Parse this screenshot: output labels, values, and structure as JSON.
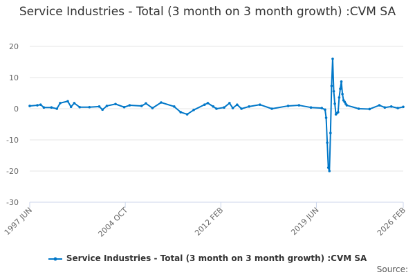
{
  "chart_data": {
    "type": "line",
    "title": "Service Industries - Total (3 month on 3 month growth) :CVM SA",
    "xlabel": "",
    "ylabel": "",
    "ylim": [
      -30,
      20
    ],
    "yticks": [
      20,
      10,
      0,
      -10,
      -20,
      -30
    ],
    "xticks": [
      "1997 JUN",
      "2004 OCT",
      "2012 FEB",
      "2019 JUN",
      "2026 FEB"
    ],
    "xrange": [
      "1997-06",
      "2026-02"
    ],
    "grid": true,
    "legend": "bottom",
    "color": "#0077c8",
    "series": [
      {
        "name": "Service Industries - Total (3 month on 3 month growth) :CVM SA",
        "points": [
          [
            "1997-06",
            0.9
          ],
          [
            "1998-01",
            1.1
          ],
          [
            "1998-04",
            1.3
          ],
          [
            "1998-07",
            0.4
          ],
          [
            "1999-02",
            0.4
          ],
          [
            "1999-07",
            0.0
          ],
          [
            "1999-10",
            1.8
          ],
          [
            "2000-05",
            2.4
          ],
          [
            "2000-08",
            0.6
          ],
          [
            "2000-11",
            1.8
          ],
          [
            "2001-04",
            0.5
          ],
          [
            "2002-01",
            0.5
          ],
          [
            "2002-10",
            0.7
          ],
          [
            "2003-01",
            -0.3
          ],
          [
            "2003-05",
            0.9
          ],
          [
            "2004-01",
            1.5
          ],
          [
            "2004-09",
            0.5
          ],
          [
            "2005-02",
            1.1
          ],
          [
            "2006-01",
            0.9
          ],
          [
            "2006-05",
            1.7
          ],
          [
            "2006-11",
            0.2
          ],
          [
            "2007-07",
            2.0
          ],
          [
            "2008-07",
            0.7
          ],
          [
            "2009-01",
            -1.1
          ],
          [
            "2009-07",
            -1.8
          ],
          [
            "2010-01",
            -0.4
          ],
          [
            "2010-11",
            1.3
          ],
          [
            "2011-02",
            1.8
          ],
          [
            "2011-07",
            0.7
          ],
          [
            "2011-10",
            0.0
          ],
          [
            "2012-05",
            0.4
          ],
          [
            "2012-10",
            1.8
          ],
          [
            "2013-01",
            0.2
          ],
          [
            "2013-05",
            1.3
          ],
          [
            "2013-09",
            0.0
          ],
          [
            "2014-04",
            0.7
          ],
          [
            "2015-02",
            1.3
          ],
          [
            "2016-01",
            0.0
          ],
          [
            "2017-04",
            0.9
          ],
          [
            "2018-02",
            1.1
          ],
          [
            "2019-01",
            0.4
          ],
          [
            "2019-11",
            0.2
          ],
          [
            "2020-02",
            -0.3
          ],
          [
            "2020-03",
            -2.9
          ],
          [
            "2020-04",
            -10.9
          ],
          [
            "2020-05",
            -18.9
          ],
          [
            "2020-06",
            -20.0
          ],
          [
            "2020-07",
            -7.8
          ],
          [
            "2020-08",
            7.3
          ],
          [
            "2020-09",
            16.0
          ],
          [
            "2020-10",
            5.6
          ],
          [
            "2020-11",
            1.6
          ],
          [
            "2020-12",
            -1.8
          ],
          [
            "2021-01",
            -1.4
          ],
          [
            "2021-02",
            -1.1
          ],
          [
            "2021-03",
            3.6
          ],
          [
            "2021-04",
            6.4
          ],
          [
            "2021-05",
            8.7
          ],
          [
            "2021-06",
            4.7
          ],
          [
            "2021-07",
            2.7
          ],
          [
            "2021-08",
            2.2
          ],
          [
            "2021-09",
            1.6
          ],
          [
            "2021-10",
            1.1
          ],
          [
            "2022-09",
            0.0
          ],
          [
            "2023-07",
            -0.1
          ],
          [
            "2024-04",
            1.1
          ],
          [
            "2024-09",
            0.4
          ],
          [
            "2025-03",
            0.7
          ],
          [
            "2025-09",
            0.2
          ],
          [
            "2026-02",
            0.6
          ]
        ]
      }
    ]
  },
  "source_label": "Source:"
}
